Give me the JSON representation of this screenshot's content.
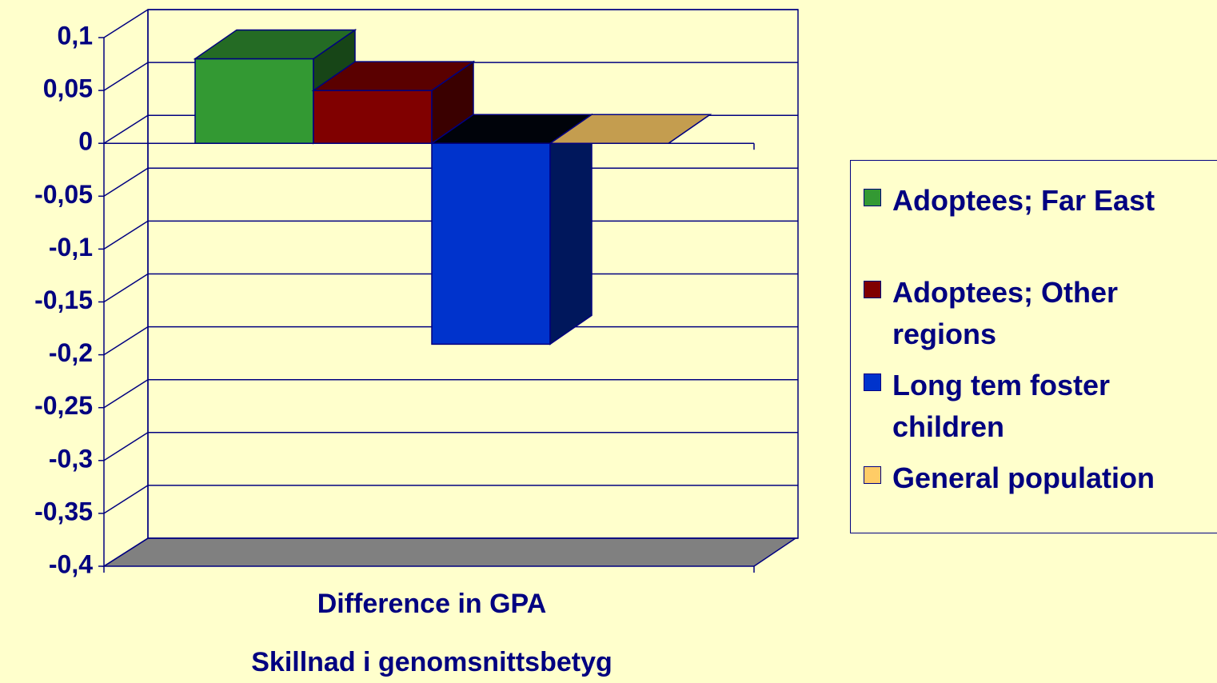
{
  "chart_data": {
    "type": "bar3d",
    "categories": [
      "Difference in GPA"
    ],
    "x_label": "Skillnad i genomsnittsbetyg",
    "series": [
      {
        "name": "Adoptees; Far East",
        "color": "#339933",
        "values": [
          0.08
        ]
      },
      {
        "name": "Adoptees; Other regions",
        "color": "#800000",
        "values": [
          0.05
        ]
      },
      {
        "name": "Long tem foster children",
        "color": "#0033cc",
        "values": [
          -0.19
        ]
      },
      {
        "name": "General population",
        "color": "#ffcc66",
        "values": [
          0
        ]
      }
    ],
    "ylim": [
      -0.4,
      0.1
    ],
    "yticks": [
      {
        "value": 0.1,
        "label": "0,1"
      },
      {
        "value": 0.05,
        "label": "0,05"
      },
      0,
      {
        "value": -0.05,
        "label": "-0,05"
      },
      {
        "value": -0.1,
        "label": "-0,1"
      },
      {
        "value": -0.15,
        "label": "-0,15"
      },
      {
        "value": -0.2,
        "label": "-0,2"
      },
      {
        "value": -0.25,
        "label": "-0,25"
      },
      {
        "value": -0.3,
        "label": "-0,3"
      },
      {
        "value": -0.35,
        "label": "-0,35"
      },
      {
        "value": -0.4,
        "label": "-0,4"
      }
    ],
    "grid": true,
    "legend": "right"
  }
}
